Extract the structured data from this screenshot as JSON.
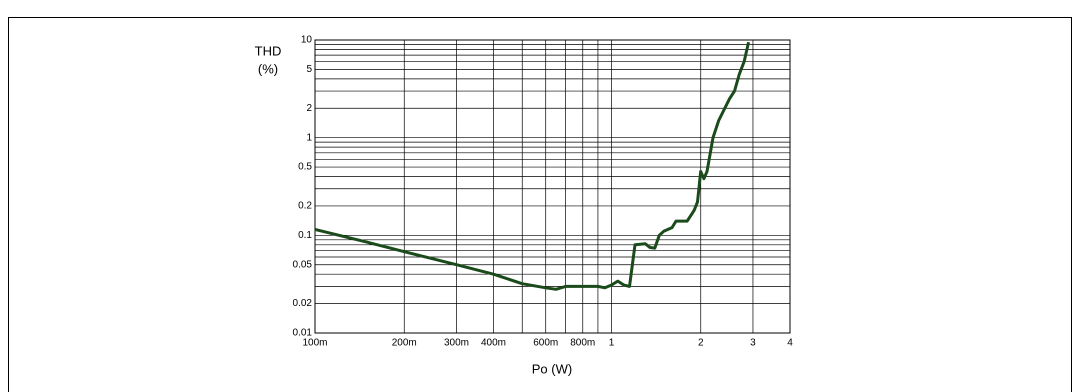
{
  "chart_data": {
    "type": "line",
    "ylabel": [
      "THD",
      "(%)"
    ],
    "xlabel": "Po (W)",
    "xscale": "log",
    "yscale": "log",
    "grid": true,
    "xlim": [
      0.1,
      4
    ],
    "ylim": [
      0.01,
      10
    ],
    "xticks": [
      {
        "value": 0.1,
        "label": "100m"
      },
      {
        "value": 0.2,
        "label": "200m"
      },
      {
        "value": 0.3,
        "label": "300m"
      },
      {
        "value": 0.4,
        "label": "400m"
      },
      {
        "value": 0.6,
        "label": "600m"
      },
      {
        "value": 0.8,
        "label": "800m"
      },
      1,
      2,
      3,
      4
    ],
    "xgrid_minor": [
      0.5,
      0.7,
      0.9
    ],
    "yticks": [
      0.01,
      0.02,
      0.05,
      0.1,
      0.2,
      0.5,
      1,
      2,
      5,
      10
    ],
    "ygrid_minor": [
      0.03,
      0.04,
      0.06,
      0.07,
      0.08,
      0.09,
      0.3,
      0.4,
      0.6,
      0.7,
      0.8,
      0.9,
      3,
      4,
      6,
      7,
      8,
      9
    ],
    "x": [
      0.1,
      0.15,
      0.2,
      0.3,
      0.4,
      0.5,
      0.6,
      0.65,
      0.7,
      0.8,
      0.9,
      0.95,
      1.0,
      1.05,
      1.1,
      1.15,
      1.2,
      1.3,
      1.35,
      1.4,
      1.45,
      1.5,
      1.6,
      1.65,
      1.7,
      1.8,
      1.9,
      1.95,
      2.0,
      2.05,
      2.1,
      2.2,
      2.3,
      2.5,
      2.6,
      2.7,
      2.8,
      2.9
    ],
    "series": [
      {
        "color": "#1b4a1b",
        "values": [
          0.115,
          0.085,
          0.068,
          0.05,
          0.04,
          0.032,
          0.029,
          0.028,
          0.03,
          0.03,
          0.03,
          0.029,
          0.031,
          0.034,
          0.031,
          0.03,
          0.08,
          0.082,
          0.075,
          0.074,
          0.1,
          0.11,
          0.12,
          0.14,
          0.14,
          0.14,
          0.18,
          0.22,
          0.45,
          0.38,
          0.45,
          1.0,
          1.5,
          2.5,
          3.0,
          4.5,
          6,
          9.5
        ]
      }
    ]
  }
}
